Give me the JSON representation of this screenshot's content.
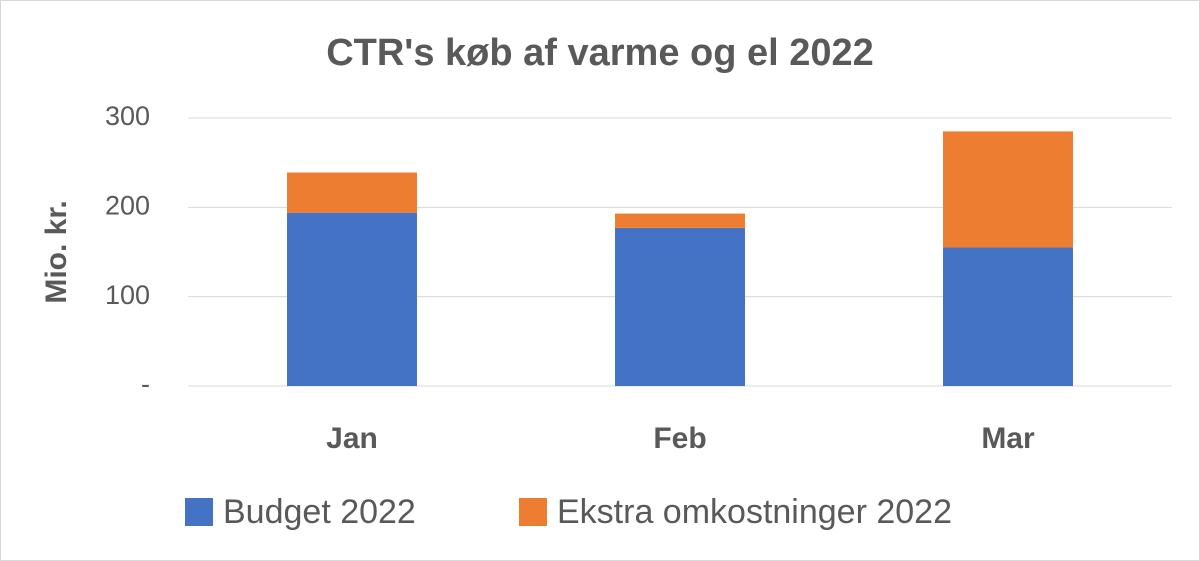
{
  "chart_data": {
    "type": "stacked_bar",
    "title": "CTR's køb af varme og el 2022",
    "y_label": "Mio. kr.",
    "categories": [
      "Jan",
      "Feb",
      "Mar"
    ],
    "series": [
      {
        "name": "Budget 2022",
        "color": "#4472c4",
        "values": [
          194,
          177,
          155
        ]
      },
      {
        "name": "Ekstra omkostninger 2022",
        "color": "#ed7d31",
        "values": [
          45,
          16,
          130
        ]
      }
    ],
    "ylim": [
      0,
      300
    ],
    "yticks": [
      {
        "value": 0,
        "label": "-"
      },
      100,
      200,
      300
    ],
    "grid": true
  }
}
